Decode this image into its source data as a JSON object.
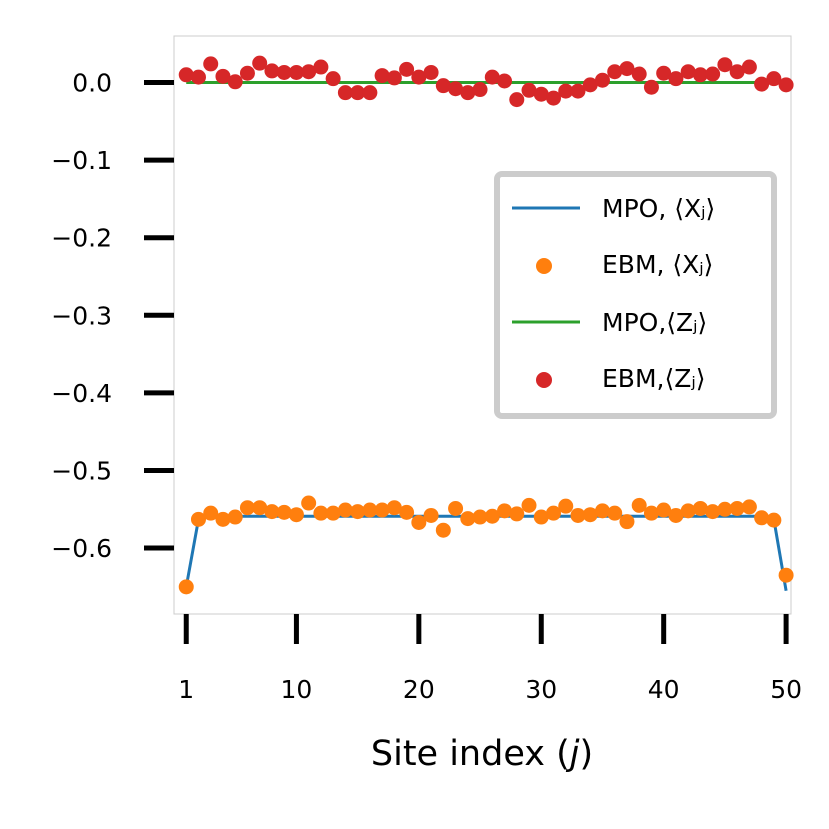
{
  "chart_data": {
    "type": "line+scatter",
    "title": "",
    "xlabel": "Site index (j)",
    "ylabel": "",
    "xlim": [
      0,
      50.4
    ],
    "ylim": [
      -0.685,
      0.06
    ],
    "grid": false,
    "legend_position": "center-right",
    "x_ticks": [
      1,
      10,
      20,
      30,
      40,
      50
    ],
    "x_tick_labels": [
      "1",
      "10",
      "20",
      "30",
      "40",
      "50"
    ],
    "y_ticks": [
      0.0,
      -0.1,
      -0.2,
      -0.3,
      -0.4,
      -0.5,
      -0.6
    ],
    "y_tick_labels": [
      "0.0",
      "−0.1",
      "−0.2",
      "−0.3",
      "−0.4",
      "−0.5",
      "−0.6"
    ],
    "x": [
      1,
      2,
      3,
      4,
      5,
      6,
      7,
      8,
      9,
      10,
      11,
      12,
      13,
      14,
      15,
      16,
      17,
      18,
      19,
      20,
      21,
      22,
      23,
      24,
      25,
      26,
      27,
      28,
      29,
      30,
      31,
      32,
      33,
      34,
      35,
      36,
      37,
      38,
      39,
      40,
      41,
      42,
      43,
      44,
      45,
      46,
      47,
      48,
      49,
      50
    ],
    "series": [
      {
        "name": "MPO, ⟨Xⱼ⟩",
        "kind": "line",
        "color": "#1f77b4",
        "values": [
          -0.65,
          -0.563,
          -0.559,
          -0.559,
          -0.559,
          -0.559,
          -0.559,
          -0.559,
          -0.559,
          -0.559,
          -0.559,
          -0.559,
          -0.559,
          -0.559,
          -0.559,
          -0.559,
          -0.559,
          -0.559,
          -0.559,
          -0.559,
          -0.559,
          -0.559,
          -0.559,
          -0.559,
          -0.559,
          -0.559,
          -0.559,
          -0.559,
          -0.559,
          -0.559,
          -0.559,
          -0.559,
          -0.559,
          -0.559,
          -0.559,
          -0.559,
          -0.559,
          -0.559,
          -0.559,
          -0.559,
          -0.559,
          -0.559,
          -0.559,
          -0.559,
          -0.559,
          -0.559,
          -0.559,
          -0.559,
          -0.563,
          -0.655
        ]
      },
      {
        "name": "EBM, ⟨Xⱼ⟩",
        "kind": "scatter",
        "color": "#ff7f0e",
        "values": [
          -0.65,
          -0.563,
          -0.555,
          -0.563,
          -0.56,
          -0.548,
          -0.548,
          -0.553,
          -0.554,
          -0.557,
          -0.542,
          -0.555,
          -0.555,
          -0.551,
          -0.553,
          -0.551,
          -0.551,
          -0.548,
          -0.554,
          -0.567,
          -0.558,
          -0.577,
          -0.549,
          -0.562,
          -0.56,
          -0.559,
          -0.552,
          -0.556,
          -0.545,
          -0.56,
          -0.555,
          -0.546,
          -0.558,
          -0.557,
          -0.552,
          -0.555,
          -0.566,
          -0.545,
          -0.555,
          -0.551,
          -0.558,
          -0.552,
          -0.549,
          -0.553,
          -0.55,
          -0.549,
          -0.547,
          -0.561,
          -0.564,
          -0.635
        ]
      },
      {
        "name": "MPO,⟨Zⱼ⟩",
        "kind": "line",
        "color": "#2ca02c",
        "values": [
          0,
          0,
          0,
          0,
          0,
          0,
          0,
          0,
          0,
          0,
          0,
          0,
          0,
          0,
          0,
          0,
          0,
          0,
          0,
          0,
          0,
          0,
          0,
          0,
          0,
          0,
          0,
          0,
          0,
          0,
          0,
          0,
          0,
          0,
          0,
          0,
          0,
          0,
          0,
          0,
          0,
          0,
          0,
          0,
          0,
          0,
          0,
          0,
          0,
          0
        ]
      },
      {
        "name": "EBM,⟨Zⱼ⟩",
        "kind": "scatter",
        "color": "#d62728",
        "values": [
          0.01,
          0.007,
          0.024,
          0.008,
          0.001,
          0.012,
          0.025,
          0.015,
          0.013,
          0.013,
          0.014,
          0.02,
          0.005,
          -0.013,
          -0.013,
          -0.013,
          0.009,
          0.006,
          0.017,
          0.007,
          0.013,
          -0.004,
          -0.008,
          -0.013,
          -0.009,
          0.007,
          0.002,
          -0.022,
          -0.01,
          -0.015,
          -0.02,
          -0.011,
          -0.011,
          -0.003,
          0.003,
          0.014,
          0.018,
          0.011,
          -0.006,
          0.012,
          0.005,
          0.014,
          0.01,
          0.011,
          0.023,
          0.014,
          0.02,
          -0.002,
          0.005,
          -0.003
        ]
      }
    ]
  }
}
